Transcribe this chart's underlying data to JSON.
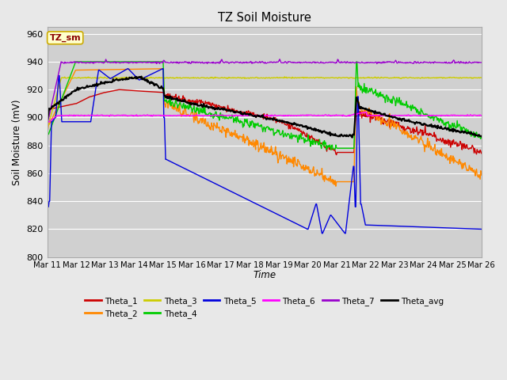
{
  "title": "TZ Soil Moisture",
  "ylabel": "Soil Moisture (mV)",
  "xlabel": "Time",
  "ylim": [
    800,
    965
  ],
  "bg_color": "#e8e8e8",
  "plot_bg_color": "#d0d0d0",
  "grid_color": "#ffffff",
  "annotation_text": "TZ_sm",
  "annotation_color": "#8b0000",
  "annotation_bg": "#ffffcc",
  "annotation_border": "#ccaa00",
  "series_colors": {
    "Theta_1": "#cc0000",
    "Theta_2": "#ff8800",
    "Theta_3": "#cccc00",
    "Theta_4": "#00cc00",
    "Theta_5": "#0000dd",
    "Theta_6": "#ff00ff",
    "Theta_7": "#9900cc",
    "Theta_avg": "#000000"
  },
  "tick_labels": [
    "Mar 11",
    "Mar 12",
    "Mar 13",
    "Mar 14",
    "Mar 15",
    "Mar 16",
    "Mar 17",
    "Mar 18",
    "Mar 19",
    "Mar 20",
    "Mar 21",
    "Mar 22",
    "Mar 23",
    "Mar 24",
    "Mar 25",
    "Mar 26"
  ],
  "yticks": [
    800,
    820,
    840,
    860,
    880,
    900,
    920,
    940,
    960
  ]
}
